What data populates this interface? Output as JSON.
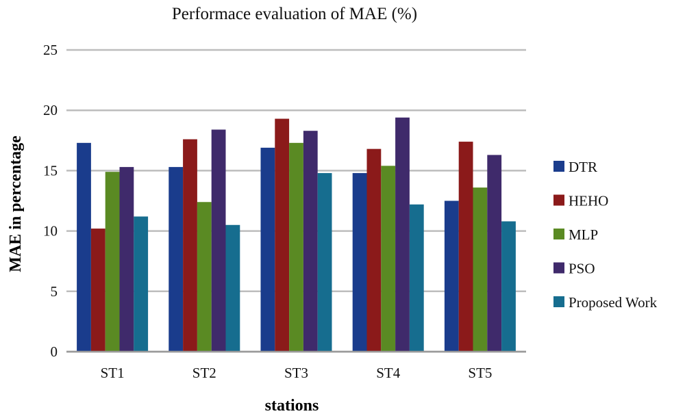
{
  "chart_data": {
    "type": "bar",
    "title": "Performace evaluation of MAE (%)",
    "xlabel": "stations",
    "ylabel": "MAE  in percentage",
    "categories": [
      "ST1",
      "ST2",
      "ST3",
      "ST4",
      "ST5"
    ],
    "ylim": [
      0,
      25
    ],
    "yticks": [
      0,
      5,
      10,
      15,
      20,
      25
    ],
    "grid": true,
    "legend_position": "right",
    "series": [
      {
        "name": "DTR",
        "color": "#1a3c8c",
        "values": [
          17.3,
          15.3,
          16.9,
          14.8,
          12.5
        ]
      },
      {
        "name": "HEHO",
        "color": "#8b1a1a",
        "values": [
          10.2,
          17.6,
          19.3,
          16.8,
          17.4
        ]
      },
      {
        "name": "MLP",
        "color": "#5a8a23",
        "values": [
          14.9,
          12.4,
          17.3,
          15.4,
          13.6
        ]
      },
      {
        "name": "PSO",
        "color": "#3f2a6b",
        "values": [
          15.3,
          18.4,
          18.3,
          19.4,
          16.3
        ]
      },
      {
        "name": "Proposed Work",
        "color": "#166d8f",
        "values": [
          11.2,
          10.5,
          14.8,
          12.2,
          10.8
        ]
      }
    ]
  }
}
